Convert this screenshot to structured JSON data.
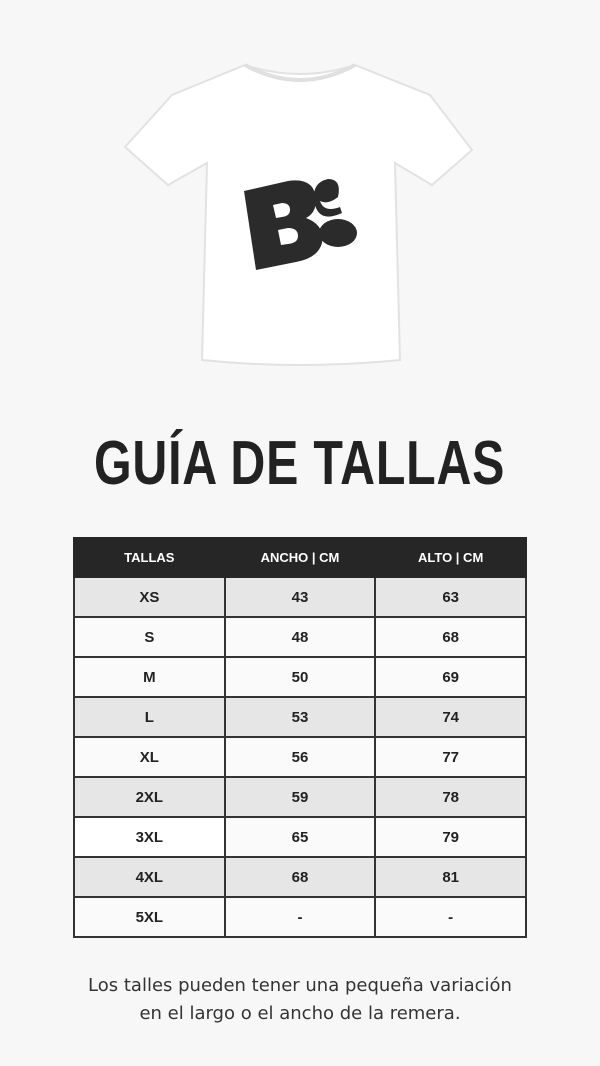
{
  "product": {
    "logo_text": "Be.",
    "shirt_color": "#ffffff",
    "logo_color": "#2b2b2b"
  },
  "title": "GUÍA DE TALLAS",
  "table": {
    "headers": [
      "TALLAS",
      "ANCHO | CM",
      "ALTO | CM"
    ],
    "rows": [
      [
        "XS",
        "43",
        "63"
      ],
      [
        "S",
        "48",
        "68"
      ],
      [
        "M",
        "50",
        "69"
      ],
      [
        "L",
        "53",
        "74"
      ],
      [
        "XL",
        "56",
        "77"
      ],
      [
        "2XL",
        "59",
        "78"
      ],
      [
        "3XL",
        "65",
        "79"
      ],
      [
        "4XL",
        "68",
        "81"
      ],
      [
        "5XL",
        "-",
        "-"
      ]
    ]
  },
  "note": [
    "Los talles pueden tener una pequeña variación",
    "en el largo o el ancho de la remera."
  ]
}
